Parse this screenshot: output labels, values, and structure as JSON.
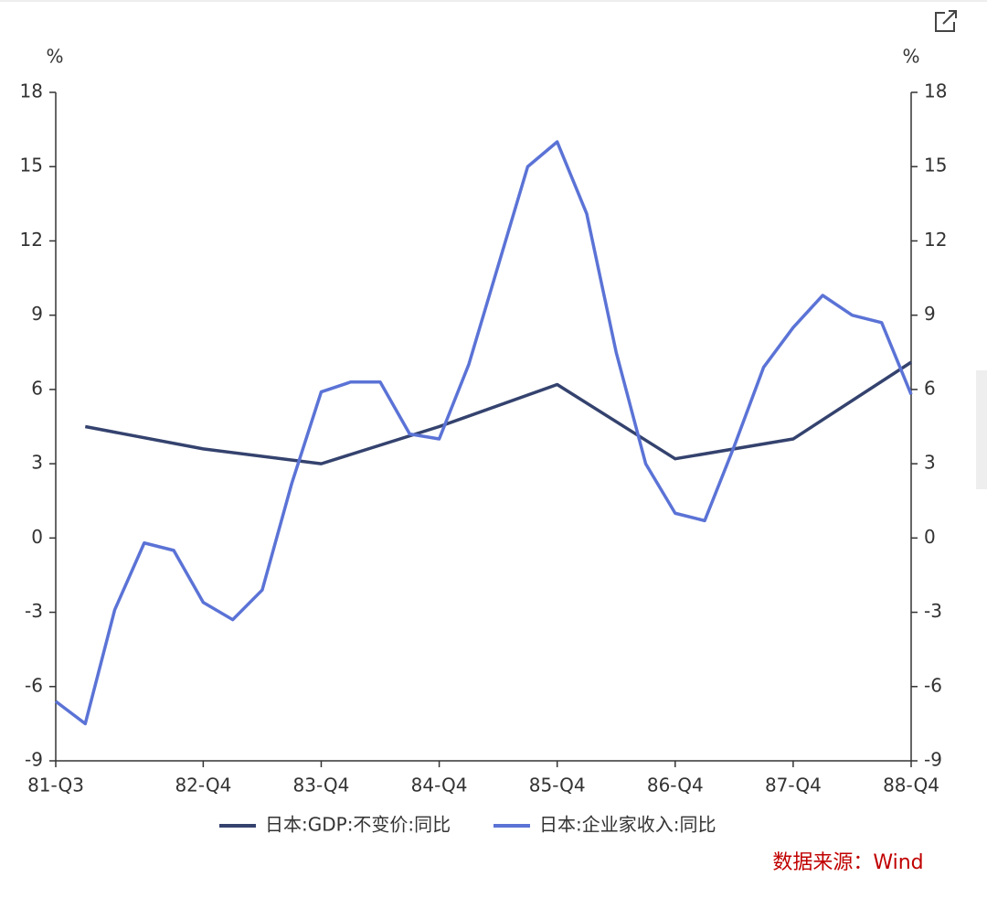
{
  "chart_data": {
    "type": "line",
    "y_label": "%",
    "y2_label": "%",
    "source": "数据来源：Wind",
    "categories": [
      "81-Q3",
      null,
      null,
      null,
      null,
      "82-Q4",
      null,
      null,
      null,
      "83-Q4",
      null,
      null,
      null,
      "84-Q4",
      null,
      null,
      null,
      "85-Q4",
      null,
      null,
      null,
      "86-Q4",
      null,
      null,
      null,
      "87-Q4",
      null,
      null,
      null,
      "88-Q4"
    ],
    "connect_nulls": true,
    "series": [
      {
        "name": "日本:GDP:不变价:同比",
        "color": "#34426e",
        "axis": "y",
        "values": [
          null,
          4.5,
          null,
          null,
          null,
          3.6,
          null,
          null,
          null,
          3.0,
          null,
          null,
          null,
          4.5,
          null,
          null,
          null,
          6.2,
          null,
          null,
          null,
          3.2,
          null,
          null,
          null,
          4.0,
          null,
          null,
          null,
          7.1
        ]
      },
      {
        "name": "日本:企业家收入:同比",
        "color": "#5b73d6",
        "axis": "y2",
        "values": [
          -6.6,
          -7.5,
          -2.9,
          -0.2,
          -0.5,
          -2.6,
          -3.3,
          -2.1,
          2.2,
          5.9,
          6.3,
          6.3,
          4.2,
          4.0,
          7.0,
          11.0,
          15.0,
          16.0,
          13.1,
          7.5,
          3.0,
          1.0,
          0.7,
          3.7,
          6.9,
          8.5,
          9.8,
          9.0,
          8.7,
          5.8
        ]
      }
    ],
    "ylim": [
      -9,
      18
    ],
    "yticks": [
      -9,
      -6,
      -3,
      0,
      3,
      6,
      9,
      12,
      15,
      18
    ],
    "y2lim": [
      -9,
      18
    ],
    "y2ticks": [
      -9,
      -6,
      -3,
      0,
      3,
      6,
      9,
      12,
      15,
      18
    ],
    "grid": false
  }
}
